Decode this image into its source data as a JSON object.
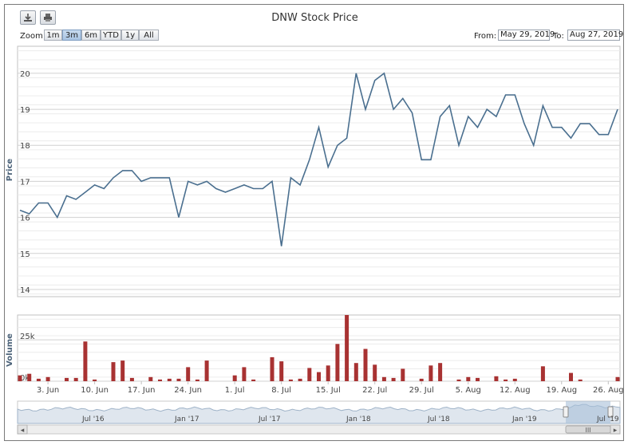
{
  "toolbar": {
    "export_icon": "download-icon",
    "print_icon": "printer-icon"
  },
  "range_selector": {
    "zoom_label": "Zoom",
    "buttons": [
      "1m",
      "3m",
      "6m",
      "YTD",
      "1y",
      "All"
    ],
    "active": "3m",
    "from_label": "From:",
    "from_value": "May 29, 2019",
    "to_label": "To:",
    "to_value": "Aug 27, 2019"
  },
  "navigator": {
    "labels": [
      "Jul '16",
      "Jan '17",
      "Jul '17",
      "Jan '18",
      "Jul '18",
      "Jan '19",
      "Jul '19"
    ],
    "scroll_grip": "III",
    "left_arrow": "◂",
    "right_arrow": "▸"
  },
  "colors": {
    "price_line": "#4a6f8f",
    "volume_bar": "#a83232",
    "navigator_fill": "#dfe6ee",
    "navigator_line": "#9fb3c8",
    "selection_fill": "#a9bfd9"
  },
  "chart_data": {
    "type": "line",
    "title": "DNW Stock Price",
    "panels": [
      {
        "name": "price",
        "type": "line",
        "ylabel": "Price",
        "ylim": [
          13.8,
          20.75
        ],
        "yticks": [
          14,
          15,
          16,
          17,
          18,
          19,
          20
        ],
        "series": [
          {
            "values": [
              16.2,
              16.1,
              16.4,
              16.4,
              16.0,
              16.6,
              16.5,
              16.7,
              16.9,
              16.8,
              17.1,
              17.3,
              17.3,
              17.0,
              17.1,
              17.1,
              17.1,
              16.0,
              17.0,
              16.9,
              17.0,
              16.8,
              16.7,
              16.8,
              16.9,
              16.8,
              16.8,
              17.0,
              15.2,
              17.1,
              16.9,
              17.6,
              18.5,
              17.4,
              18.0,
              18.2,
              20.0,
              19.0,
              19.8,
              20.0,
              19.0,
              19.3,
              18.9,
              17.6,
              17.6,
              18.8,
              19.1,
              18.0,
              18.8,
              18.5,
              19.0,
              18.8,
              19.4,
              19.4,
              18.6,
              18.0,
              19.1,
              18.5,
              18.5,
              18.2,
              18.6,
              18.6,
              18.3,
              18.3,
              19.0
            ]
          }
        ]
      },
      {
        "name": "volume",
        "type": "bar",
        "ylabel": "Volume",
        "yticks": [
          "0k",
          "25k"
        ],
        "ylim": [
          0,
          40000
        ],
        "series": [
          {
            "values": [
              3500,
              4500,
              1500,
              2500,
              0,
              2000,
              2000,
              24000,
              1000,
              0,
              11500,
              12500,
              2000,
              0,
              2500,
              1000,
              1500,
              1500,
              8500,
              1000,
              12500,
              0,
              0,
              3500,
              8500,
              1000,
              0,
              14500,
              12000,
              1000,
              1500,
              8000,
              5500,
              9500,
              22500,
              40000,
              11000,
              19500,
              10000,
              2500,
              2000,
              7500,
              0,
              1500,
              9500,
              11000,
              0,
              1000,
              2500,
              2000,
              0,
              3000,
              1000,
              1500,
              0,
              0,
              9000,
              0,
              0,
              5000,
              1000,
              0,
              0,
              0,
              2500
            ]
          }
        ]
      }
    ],
    "x_tick_labels": [
      "3. Jun",
      "10. Jun",
      "17. Jun",
      "24. Jun",
      "1. Jul",
      "8. Jul",
      "15. Jul",
      "22. Jul",
      "29. Jul",
      "5. Aug",
      "12. Aug",
      "19. Aug",
      "26. Aug"
    ],
    "grid": true
  }
}
